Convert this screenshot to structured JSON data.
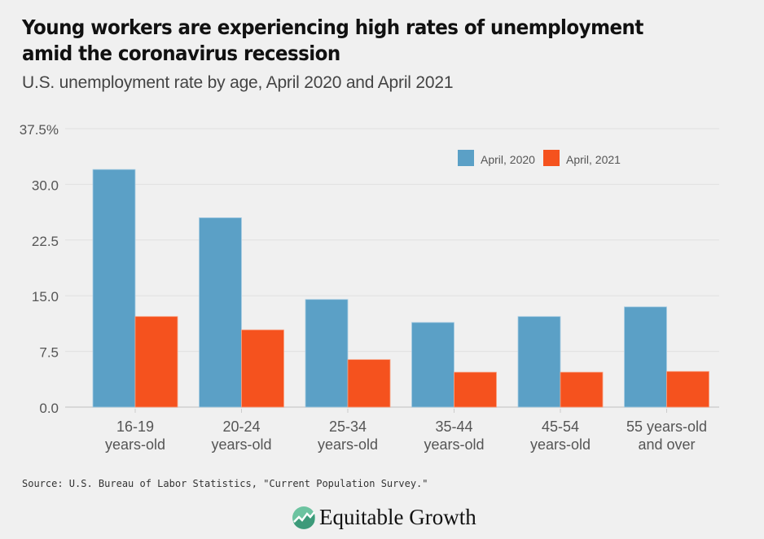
{
  "header": {
    "title": "Young workers are experiencing high rates of unemployment amid the coronavirus recession",
    "subtitle": "U.S. unemployment rate by age, April 2020 and April 2021"
  },
  "footer": {
    "source": "Source: U.S. Bureau of Labor Statistics, \"Current Population Survey.\"",
    "logo_text": "Equitable Growth"
  },
  "chart_data": {
    "type": "bar",
    "title": "Young workers are experiencing high rates of unemployment amid the coronavirus recession",
    "subtitle": "U.S. unemployment rate by age, April 2020 and April 2021",
    "xlabel": "",
    "ylabel": "",
    "ylim": [
      0,
      37.5
    ],
    "yticks": [
      0,
      7.5,
      15,
      22.5,
      30,
      37.5
    ],
    "ytick_labels": [
      "0.0",
      "7.5",
      "15.0",
      "22.5",
      "30.0",
      "37.5%"
    ],
    "grid": true,
    "legend_position": "top-right",
    "categories": [
      [
        "16-19",
        "years-old"
      ],
      [
        "20-24",
        "years-old"
      ],
      [
        "25-34",
        "years-old"
      ],
      [
        "35-44",
        "years-old"
      ],
      [
        "45-54",
        "years-old"
      ],
      [
        "55 years-old",
        "and over"
      ]
    ],
    "series": [
      {
        "name": "April, 2020",
        "color": "#5ba0c6",
        "values": [
          32.0,
          25.5,
          14.5,
          11.4,
          12.2,
          13.5
        ]
      },
      {
        "name": "April, 2021",
        "color": "#f5521e",
        "values": [
          12.2,
          10.4,
          6.4,
          4.7,
          4.7,
          4.8
        ]
      }
    ]
  }
}
